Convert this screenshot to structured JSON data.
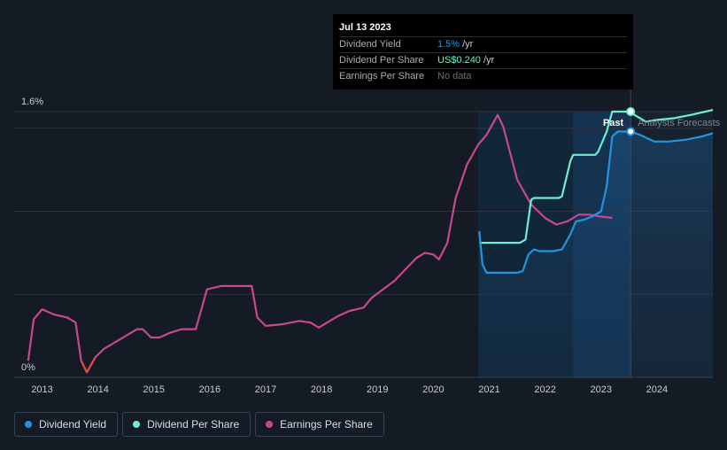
{
  "colors": {
    "dividend_yield": "#2394df",
    "dividend_per_share": "#6cf0d0",
    "earnings_per_share": "#c8478e",
    "earnings_negative": "#e5473f",
    "background": "#151b24"
  },
  "tooltip": {
    "date": "Jul 13 2023",
    "rows": [
      {
        "label": "Dividend Yield",
        "value": "1.5%",
        "unit": "/yr",
        "color": "#2394df"
      },
      {
        "label": "Dividend Per Share",
        "value": "US$0.240",
        "unit": "/yr",
        "color": "#6cf0d0"
      },
      {
        "label": "Earnings Per Share",
        "value": "No data",
        "unit": "",
        "color": "#6b7079"
      }
    ]
  },
  "regions": {
    "past_label": "Past",
    "forecast_label": "Analysts Forecasts"
  },
  "legend": [
    {
      "label": "Dividend Yield",
      "color": "#2394df"
    },
    {
      "label": "Dividend Per Share",
      "color": "#6cf0d0"
    },
    {
      "label": "Earnings Per Share",
      "color": "#c8478e"
    }
  ],
  "chart_data": {
    "type": "line",
    "title": "",
    "xlabel": "",
    "ylabel": "",
    "x_ticks": [
      "2013",
      "2014",
      "2015",
      "2016",
      "2017",
      "2018",
      "2019",
      "2020",
      "2021",
      "2022",
      "2023",
      "2024"
    ],
    "y_ticks": [
      "0%",
      "1.6%"
    ],
    "xlim": [
      2012.5,
      2025.0
    ],
    "ylim": [
      0,
      1.6
    ],
    "past_boundary": 2023.53,
    "shaded_start": 2020.8,
    "darker_shade_start": 2022.5,
    "series": [
      {
        "name": "Dividend Yield",
        "unit": "%",
        "points": [
          [
            2020.82,
            0.88
          ],
          [
            2020.88,
            0.68
          ],
          [
            2020.95,
            0.63
          ],
          [
            2021.1,
            0.63
          ],
          [
            2021.3,
            0.63
          ],
          [
            2021.5,
            0.63
          ],
          [
            2021.6,
            0.64
          ],
          [
            2021.7,
            0.74
          ],
          [
            2021.8,
            0.77
          ],
          [
            2021.9,
            0.76
          ],
          [
            2022.0,
            0.76
          ],
          [
            2022.15,
            0.76
          ],
          [
            2022.3,
            0.77
          ],
          [
            2022.45,
            0.86
          ],
          [
            2022.55,
            0.94
          ],
          [
            2022.7,
            0.95
          ],
          [
            2022.85,
            0.97
          ],
          [
            2023.0,
            1.0
          ],
          [
            2023.1,
            1.15
          ],
          [
            2023.2,
            1.45
          ],
          [
            2023.3,
            1.48
          ],
          [
            2023.53,
            1.48
          ],
          [
            2023.7,
            1.46
          ],
          [
            2023.95,
            1.42
          ],
          [
            2024.2,
            1.42
          ],
          [
            2024.5,
            1.43
          ],
          [
            2024.8,
            1.45
          ],
          [
            2025.0,
            1.47
          ]
        ]
      },
      {
        "name": "Dividend Per Share",
        "unit": "US$",
        "points": [
          [
            2020.82,
            0.81
          ],
          [
            2021.0,
            0.81
          ],
          [
            2021.3,
            0.81
          ],
          [
            2021.55,
            0.81
          ],
          [
            2021.65,
            0.83
          ],
          [
            2021.75,
            1.07
          ],
          [
            2021.8,
            1.08
          ],
          [
            2022.0,
            1.08
          ],
          [
            2022.25,
            1.08
          ],
          [
            2022.3,
            1.09
          ],
          [
            2022.45,
            1.3
          ],
          [
            2022.5,
            1.34
          ],
          [
            2022.75,
            1.34
          ],
          [
            2022.9,
            1.34
          ],
          [
            2022.95,
            1.36
          ],
          [
            2023.1,
            1.48
          ],
          [
            2023.2,
            1.6
          ],
          [
            2023.53,
            1.6
          ],
          [
            2023.6,
            1.58
          ],
          [
            2023.8,
            1.54
          ],
          [
            2024.0,
            1.55
          ],
          [
            2024.3,
            1.56
          ],
          [
            2024.6,
            1.58
          ],
          [
            2025.0,
            1.61
          ]
        ]
      },
      {
        "name": "Earnings Per Share",
        "unit": "US$",
        "points": [
          [
            2012.75,
            0.1
          ],
          [
            2012.85,
            0.35
          ],
          [
            2013.0,
            0.41
          ],
          [
            2013.2,
            0.38
          ],
          [
            2013.45,
            0.36
          ],
          [
            2013.6,
            0.33
          ],
          [
            2013.7,
            0.1
          ],
          [
            2013.8,
            0.03
          ],
          [
            2013.95,
            0.12
          ],
          [
            2014.1,
            0.17
          ],
          [
            2014.3,
            0.21
          ],
          [
            2014.5,
            0.25
          ],
          [
            2014.7,
            0.29
          ],
          [
            2014.8,
            0.29
          ],
          [
            2014.95,
            0.24
          ],
          [
            2015.1,
            0.24
          ],
          [
            2015.3,
            0.27
          ],
          [
            2015.5,
            0.29
          ],
          [
            2015.75,
            0.29
          ],
          [
            2015.95,
            0.53
          ],
          [
            2016.2,
            0.55
          ],
          [
            2016.4,
            0.55
          ],
          [
            2016.6,
            0.55
          ],
          [
            2016.75,
            0.55
          ],
          [
            2016.85,
            0.36
          ],
          [
            2017.0,
            0.31
          ],
          [
            2017.3,
            0.32
          ],
          [
            2017.6,
            0.34
          ],
          [
            2017.8,
            0.33
          ],
          [
            2017.95,
            0.3
          ],
          [
            2018.1,
            0.33
          ],
          [
            2018.3,
            0.37
          ],
          [
            2018.5,
            0.4
          ],
          [
            2018.75,
            0.42
          ],
          [
            2018.9,
            0.48
          ],
          [
            2019.1,
            0.53
          ],
          [
            2019.3,
            0.58
          ],
          [
            2019.5,
            0.65
          ],
          [
            2019.7,
            0.72
          ],
          [
            2019.85,
            0.75
          ],
          [
            2020.0,
            0.74
          ],
          [
            2020.1,
            0.71
          ],
          [
            2020.25,
            0.81
          ],
          [
            2020.4,
            1.08
          ],
          [
            2020.6,
            1.28
          ],
          [
            2020.8,
            1.4
          ],
          [
            2020.95,
            1.46
          ],
          [
            2021.15,
            1.58
          ],
          [
            2021.25,
            1.51
          ],
          [
            2021.5,
            1.19
          ],
          [
            2021.75,
            1.04
          ],
          [
            2022.0,
            0.96
          ],
          [
            2022.2,
            0.92
          ],
          [
            2022.4,
            0.94
          ],
          [
            2022.6,
            0.98
          ],
          [
            2022.8,
            0.98
          ],
          [
            2022.95,
            0.97
          ],
          [
            2023.2,
            0.96
          ]
        ],
        "negative_segments": [
          {
            "from": 2012.75,
            "to": 2012.8
          },
          {
            "from": 2013.65,
            "to": 2014.0
          }
        ]
      }
    ]
  }
}
